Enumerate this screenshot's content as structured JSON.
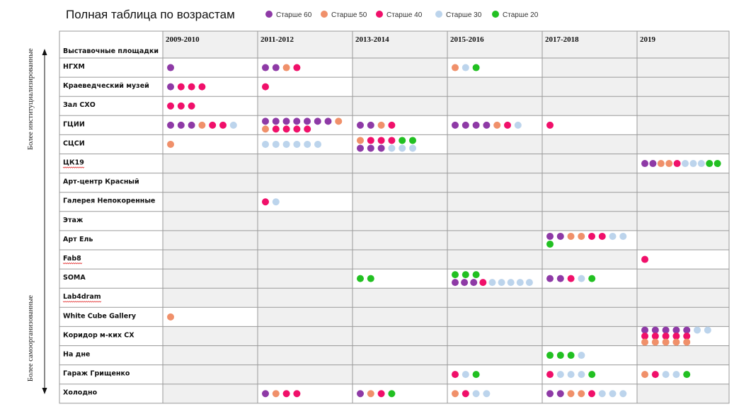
{
  "chart_data": {
    "type": "table",
    "title": "Полная таблица по возрастам",
    "legend": [
      {
        "key": "s60",
        "label": "Старше 60",
        "color": "#8e3aa6"
      },
      {
        "key": "s50",
        "label": "Старше 50",
        "color": "#f0906a"
      },
      {
        "key": "s40",
        "label": "Старше 40",
        "color": "#f0106a"
      },
      {
        "key": "s30",
        "label": "Старше 30",
        "color": "#bcd4ec"
      },
      {
        "key": "s20",
        "label": "Старше 20",
        "color": "#22c022"
      }
    ],
    "header": "Выставочные площадки",
    "columns": [
      "2009-2010",
      "2011-2012",
      "2013-2014",
      "2015-2016",
      "2017-2018",
      "2019"
    ],
    "side_labels": {
      "top": "Более институциализированные",
      "bottom": "Более самоорганизованные"
    },
    "rows": [
      {
        "venue": "НГХМ",
        "cells": [
          [
            [
              "s60"
            ]
          ],
          [
            [
              "s60",
              "s60",
              "s50",
              "s40"
            ]
          ],
          [],
          [
            [
              "s50",
              "s30",
              "s20"
            ]
          ],
          [],
          []
        ]
      },
      {
        "venue": "Краеведческий музей",
        "cells": [
          [
            [
              "s60",
              "s40",
              "s40",
              "s40"
            ]
          ],
          [
            [
              "s40"
            ]
          ],
          [],
          [],
          [],
          []
        ]
      },
      {
        "venue": "Зал СХО",
        "cells": [
          [
            [
              "s40",
              "s40",
              "s40"
            ]
          ],
          [],
          [],
          [],
          [],
          []
        ]
      },
      {
        "venue": "ГЦИИ",
        "cells": [
          [
            [
              "s60",
              "s60",
              "s60",
              "s50",
              "s40",
              "s40",
              "s30"
            ]
          ],
          [
            [
              "s60",
              "s60",
              "s60",
              "s60",
              "s60",
              "s60",
              "s60",
              "s50"
            ],
            [
              "s50",
              "s40",
              "s40",
              "s40",
              "s40"
            ]
          ],
          [
            [
              "s60",
              "s60",
              "s50",
              "s40"
            ]
          ],
          [
            [
              "s60",
              "s60",
              "s60",
              "s60",
              "s50",
              "s40",
              "s30"
            ]
          ],
          [
            [
              "s40"
            ]
          ],
          []
        ]
      },
      {
        "venue": "СЦСИ",
        "cells": [
          [
            [
              "s50"
            ]
          ],
          [
            [
              "s30",
              "s30",
              "s30",
              "s30",
              "s30",
              "s30"
            ]
          ],
          [
            [
              "s50",
              "s40",
              "s40",
              "s40",
              "s20",
              "s20"
            ],
            [
              "s60",
              "s60",
              "s60",
              "s30",
              "s30",
              "s30"
            ]
          ],
          [],
          [],
          []
        ]
      },
      {
        "venue": "ЦК19",
        "squiggle": true,
        "cells": [
          [],
          [],
          [],
          [],
          [],
          [
            [
              "s60",
              "s60",
              "s50",
              "s50",
              "s40",
              "s30",
              "s30",
              "s30",
              "s20",
              "s20"
            ]
          ]
        ]
      },
      {
        "venue": "Арт-центр Красный",
        "cells": [
          [],
          [],
          [],
          [],
          [],
          []
        ]
      },
      {
        "venue": "Галерея Непокоренные",
        "cells": [
          [],
          [
            [
              "s40",
              "s30"
            ]
          ],
          [],
          [],
          [],
          []
        ]
      },
      {
        "venue": "Этаж",
        "cells": [
          [],
          [],
          [],
          [],
          [],
          []
        ]
      },
      {
        "venue": "Арт Ель",
        "cells": [
          [],
          [],
          [],
          [],
          [
            [
              "s60",
              "s60",
              "s50",
              "s50",
              "s40",
              "s40",
              "s30",
              "s30"
            ],
            [
              "s20"
            ]
          ],
          []
        ]
      },
      {
        "venue": "Fab8",
        "squiggle": true,
        "cells": [
          [],
          [],
          [],
          [],
          [],
          [
            [
              "s40"
            ]
          ]
        ]
      },
      {
        "venue": "SOMA",
        "cells": [
          [],
          [],
          [
            [
              "s20",
              "s20"
            ]
          ],
          [
            [
              "s20",
              "s20",
              "s20"
            ],
            [
              "s60",
              "s60",
              "s60",
              "s40",
              "s30",
              "s30",
              "s30",
              "s30",
              "s30"
            ]
          ],
          [
            [
              "s60",
              "s60",
              "s40",
              "s30",
              "s20"
            ]
          ],
          []
        ]
      },
      {
        "venue": "Lab4dram",
        "squiggle": true,
        "cells": [
          [],
          [],
          [],
          [],
          [],
          []
        ]
      },
      {
        "venue": "White Cube Gallery",
        "cells": [
          [
            [
              "s50"
            ]
          ],
          [],
          [],
          [],
          [],
          []
        ]
      },
      {
        "venue": "Коридор м-ких СХ",
        "cells": [
          [],
          [],
          [],
          [],
          [],
          [
            [
              "s60",
              "s60",
              "s60",
              "s60",
              "s60",
              "s30",
              "s30"
            ],
            [
              "s40",
              "s40",
              "s40",
              "s40",
              "s40"
            ],
            [
              "s50",
              "s50",
              "s50",
              "s50",
              "s50"
            ]
          ]
        ]
      },
      {
        "venue": "На дне",
        "cells": [
          [],
          [],
          [],
          [],
          [
            [
              "s20",
              "s20",
              "s20",
              "s30"
            ]
          ],
          []
        ]
      },
      {
        "venue": "Гараж Грищенко",
        "cells": [
          [],
          [],
          [],
          [
            [
              "s40",
              "s30",
              "s20"
            ]
          ],
          [
            [
              "s40",
              "s30",
              "s30",
              "s30",
              "s20"
            ]
          ],
          [
            [
              "s50",
              "s40",
              "s30",
              "s30",
              "s20"
            ]
          ]
        ]
      },
      {
        "venue": "Холодно",
        "cells": [
          [],
          [
            [
              "s60",
              "s50",
              "s40",
              "s40"
            ]
          ],
          [
            [
              "s60",
              "s50",
              "s40",
              "s20"
            ]
          ],
          [
            [
              "s50",
              "s40",
              "s30",
              "s30"
            ]
          ],
          [
            [
              "s60",
              "s60",
              "s50",
              "s50",
              "s40",
              "s30",
              "s30",
              "s30"
            ]
          ],
          []
        ]
      }
    ]
  }
}
